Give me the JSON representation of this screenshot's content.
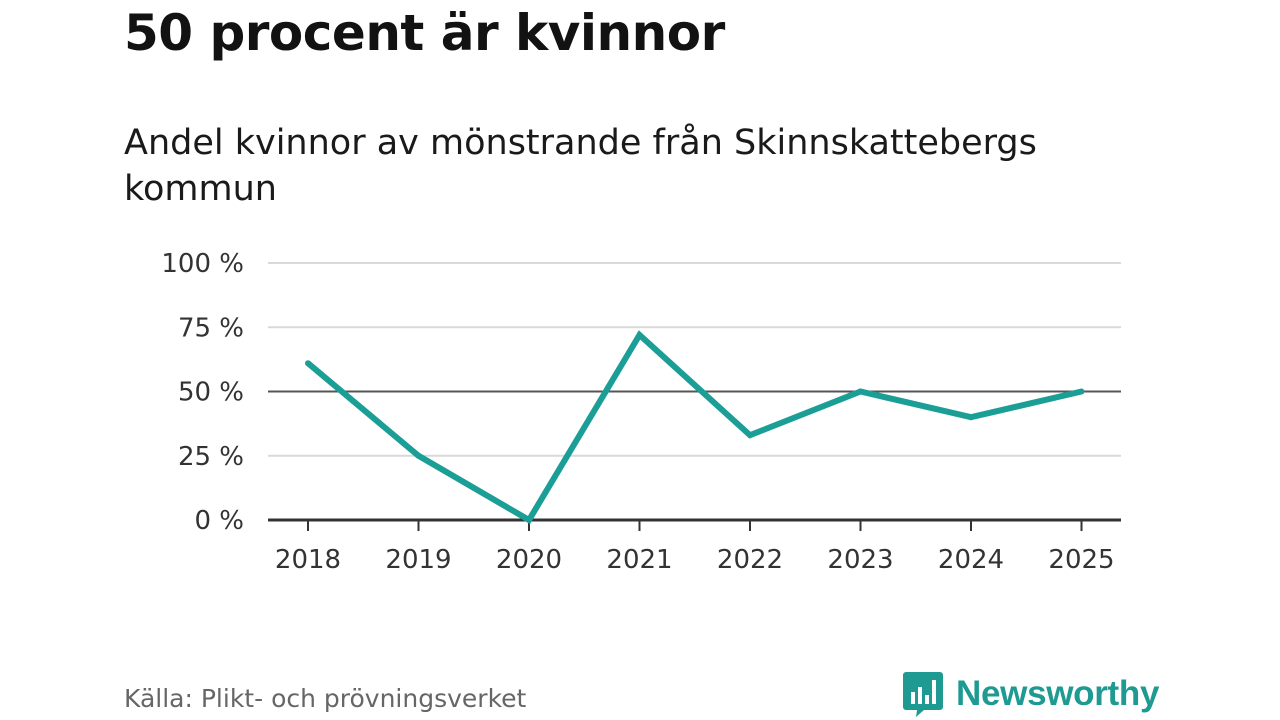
{
  "header": {
    "title": "50 procent är kvinnor",
    "subtitle": "Andel kvinnor av mönstrande från Skinnskattebergs kommun"
  },
  "footer": {
    "source": "Källa: Plikt- och prövningsverket",
    "brand": "Newsworthy"
  },
  "colors": {
    "line": "#1a9e96",
    "grid": "#d9d9d9",
    "reference": "#555555",
    "axis": "#333333",
    "brand": "#1e9a92"
  },
  "icons": {
    "logo": "bar-chart-speech-bubble-icon"
  },
  "chart_data": {
    "type": "line",
    "title": "Andel kvinnor av mönstrande från Skinnskattebergs kommun",
    "xlabel": "",
    "ylabel": "",
    "categories": [
      "2018",
      "2019",
      "2020",
      "2021",
      "2022",
      "2023",
      "2024",
      "2025"
    ],
    "series": [
      {
        "name": "Andel kvinnor",
        "values": [
          61,
          25,
          0,
          72,
          33,
          50,
          40,
          50
        ]
      }
    ],
    "ylim": [
      0,
      100
    ],
    "yticks": [
      0,
      25,
      50,
      75,
      100
    ],
    "ytick_labels": [
      "0 %",
      "25 %",
      "50 %",
      "75 %",
      "100 %"
    ],
    "reference_line": 50,
    "grid": true
  }
}
